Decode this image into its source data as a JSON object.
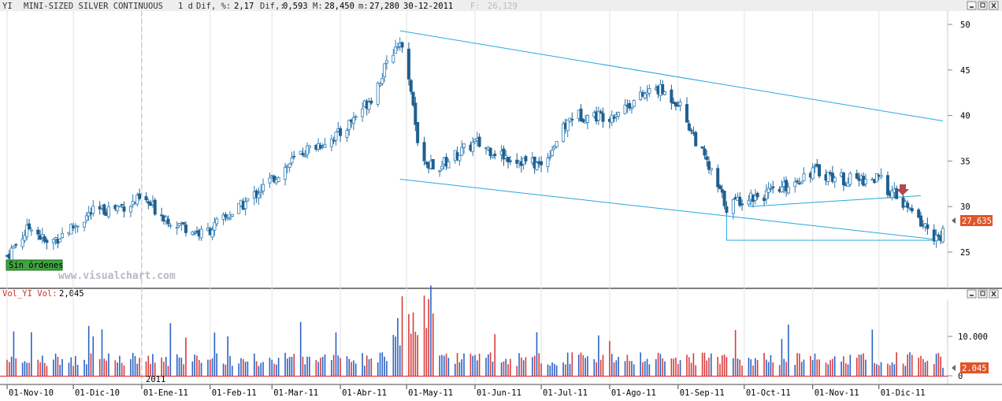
{
  "header": {
    "symbol": "YI",
    "name": "MINI-SIZED SILVER CONTINUOUS",
    "period": "1 d",
    "dif_pct_label": "Dif, %:",
    "dif_pct_value": "2,17",
    "dif_label": "Dif,:",
    "dif_value": "0,593",
    "max_label": "M:",
    "max_value": "28,450",
    "min_label": "m:",
    "min_value": "27,280",
    "date": "30-12-2011",
    "open_label": "F:",
    "open_value": "26,129"
  },
  "volume_header": {
    "label": "Vol_YI Vol:",
    "value": "2,045"
  },
  "watermark": "www.visualchart.com",
  "badge": {
    "label": "Sin órdenes"
  },
  "price_tag": "27,635",
  "volume_tag": "2.045",
  "year_marker": "2011",
  "x_ticks": [
    "01-Nov-10",
    "01-Dic-10",
    "01-Ene-11",
    "01-Feb-11",
    "01-Mar-11",
    "01-Abr-11",
    "01-May-11",
    "01-Jun-11",
    "01-Jul-11",
    "01-Ago-11",
    "01-Sep-11",
    "01-Oct-11",
    "01-Nov-11",
    "01-Dic-11"
  ],
  "price_ticks": [
    "50",
    "45",
    "40",
    "35",
    "30",
    "25"
  ],
  "volume_ticks": [
    "10.000",
    "0"
  ],
  "window_buttons": [
    "minimize-icon",
    "restore-icon",
    "close-icon"
  ],
  "colors": {
    "up": "#2c7cb6",
    "down": "#1f5f8f",
    "trendline": "#29a8de",
    "vol_up": "#2b62c4",
    "vol_down": "#d83c3c",
    "zero_line": "#e04040",
    "price_tag_bg": "#e0552a",
    "badge_bg": "#3fa33f",
    "arrow": "#b24a4a"
  },
  "chart_data": {
    "type": "candlestick",
    "y_range": [
      21,
      51.5
    ],
    "volume_range": [
      0,
      19000
    ],
    "monthly_anchors": [
      {
        "date": "01-Nov-10",
        "price": 24.6
      },
      {
        "date": "12-Nov-10",
        "price": 28.0
      },
      {
        "date": "19-Nov-10",
        "price": 25.8
      },
      {
        "date": "01-Dic-10",
        "price": 27.8
      },
      {
        "date": "09-Dic-10",
        "price": 29.3
      },
      {
        "date": "27-Dic-10",
        "price": 30.3
      },
      {
        "date": "01-Ene-11",
        "price": 30.8
      },
      {
        "date": "14-Ene-11",
        "price": 28.5
      },
      {
        "date": "28-Ene-11",
        "price": 27.0
      },
      {
        "date": "01-Feb-11",
        "price": 27.5
      },
      {
        "date": "15-Feb-11",
        "price": 30.0
      },
      {
        "date": "01-Mar-11",
        "price": 33.0
      },
      {
        "date": "15-Mar-11",
        "price": 36.0
      },
      {
        "date": "01-Abr-11",
        "price": 38.0
      },
      {
        "date": "15-Abr-11",
        "price": 42.0
      },
      {
        "date": "28-Abr-11",
        "price": 48.5
      },
      {
        "date": "01-May-11",
        "price": 46.5
      },
      {
        "date": "06-May-11",
        "price": 37.0
      },
      {
        "date": "13-May-11",
        "price": 34.0
      },
      {
        "date": "01-Jun-11",
        "price": 37.0
      },
      {
        "date": "15-Jun-11",
        "price": 35.5
      },
      {
        "date": "01-Jul-11",
        "price": 34.5
      },
      {
        "date": "15-Jul-11",
        "price": 40.0
      },
      {
        "date": "01-Ago-11",
        "price": 40.0
      },
      {
        "date": "22-Ago-11",
        "price": 43.0
      },
      {
        "date": "01-Sep-11",
        "price": 41.5
      },
      {
        "date": "23-Sep-11",
        "price": 30.0
      },
      {
        "date": "01-Oct-11",
        "price": 31.0
      },
      {
        "date": "15-Oct-11",
        "price": 31.5
      },
      {
        "date": "01-Nov-11",
        "price": 34.0
      },
      {
        "date": "15-Nov-11",
        "price": 33.0
      },
      {
        "date": "01-Dic-11",
        "price": 33.0
      },
      {
        "date": "15-Dic-11",
        "price": 29.5
      },
      {
        "date": "29-Dic-11",
        "price": 26.1
      },
      {
        "date": "30-Dic-11",
        "price": 27.6
      }
    ],
    "last_bar": {
      "date": "30-12-2011",
      "open": 26.129,
      "high": 28.45,
      "low": 27.28,
      "close": 27.635,
      "volume": 2045
    },
    "trendlines": [
      {
        "from": {
          "date": "28-Abr-11",
          "price": 49.3
        },
        "to": {
          "date": "30-Dic-11",
          "price": 39.4
        }
      },
      {
        "from": {
          "date": "28-Abr-11",
          "price": 33.0
        },
        "to": {
          "date": "30-Dic-11",
          "price": 26.3
        }
      },
      {
        "from": {
          "date": "03-Oct-11",
          "price": 30.0
        },
        "to": {
          "date": "20-Dic-11",
          "price": 31.2
        }
      },
      {
        "from": {
          "date": "23-Sep-11",
          "price": 26.3
        },
        "to": {
          "date": "30-Dic-11",
          "price": 26.3
        }
      },
      {
        "from": {
          "date": "23-Sep-11",
          "price": 26.3
        },
        "to": {
          "date": "23-Sep-11",
          "price": 30.5
        }
      }
    ]
  }
}
